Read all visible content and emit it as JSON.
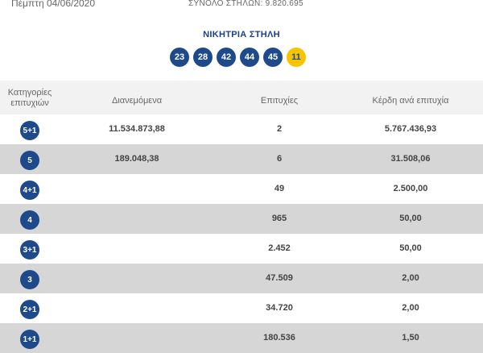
{
  "header_bar": {
    "draw_date": "Πέμπτη 04/06/2020",
    "total_columns": "ΣΥΝΟΛΟ ΣΤΗΛΩΝ: 9.820.695"
  },
  "winning": {
    "title": "ΝΙΚΗΤΡΙΑ ΣΤΗΛΗ",
    "numbers": [
      "23",
      "28",
      "42",
      "44",
      "45"
    ],
    "joker": "11"
  },
  "table": {
    "headers": {
      "category": "Κατηγορίες επιτυχιών",
      "distributed": "Διανεμόμενα",
      "winners": "Επιτυχίες",
      "prize_per_winner": "Κέρδη ανά επιτυχία"
    },
    "rows": [
      {
        "category": "5+1",
        "distributed": "11.534.873,88",
        "winners": "2",
        "prize": "5.767.436,93"
      },
      {
        "category": "5",
        "distributed": "189.048,38",
        "winners": "6",
        "prize": "31.508,06"
      },
      {
        "category": "4+1",
        "distributed": "",
        "winners": "49",
        "prize": "2.500,00"
      },
      {
        "category": "4",
        "distributed": "",
        "winners": "965",
        "prize": "50,00"
      },
      {
        "category": "3+1",
        "distributed": "",
        "winners": "2.452",
        "prize": "50,00"
      },
      {
        "category": "3",
        "distributed": "",
        "winners": "47.509",
        "prize": "2,00"
      },
      {
        "category": "2+1",
        "distributed": "",
        "winners": "34.720",
        "prize": "2,00"
      },
      {
        "category": "1+1",
        "distributed": "",
        "winners": "180.536",
        "prize": "1,50"
      }
    ]
  },
  "colors": {
    "ball_blue": "#1e4a8c",
    "joker_yellow": "#f6c400",
    "row_shade": "#d6d6d6",
    "header_bg": "#f2f2f2"
  }
}
